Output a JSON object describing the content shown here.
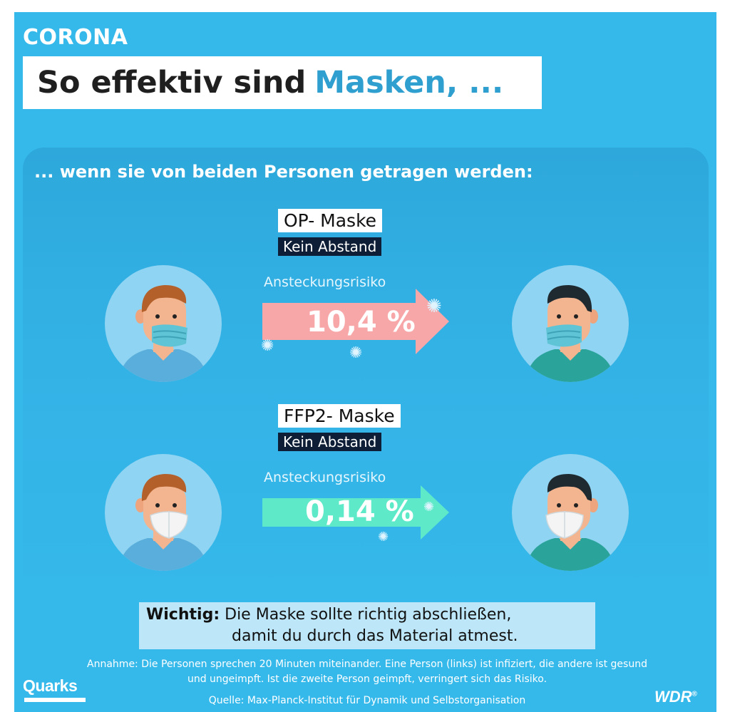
{
  "header": {
    "topic": "CORONA",
    "title_main": "So effektiv sind",
    "title_accent": "Masken, ..."
  },
  "subhead": "... wenn sie von beiden Personen getragen werden:",
  "scenarios": [
    {
      "mask": "OP- Maske",
      "distance": "Kein Abstand",
      "risk_label": "Ansteckungsrisiko",
      "risk_value": "10,4 %",
      "arrow_color": "#f8a7a8"
    },
    {
      "mask": "FFP2- Maske",
      "distance": "Kein Abstand",
      "risk_label": "Ansteckungsrisiko",
      "risk_value": "0,14 %",
      "arrow_color": "#5eeac8"
    }
  ],
  "note": {
    "bold": "Wichtig:",
    "line1": "Die Maske sollte richtig abschließen,",
    "line2": "damit du durch das Material atmest."
  },
  "assumption": "Annahme: Die Personen sprechen 20 Minuten miteinander. Eine Person (links) ist infiziert, die andere ist gesund und ungeimpft. Ist die zweite Person geimpft, verringert sich das Risiko.",
  "source": "Quelle: Max-Planck-Institut für Dynamik und Selbstorganisation",
  "logos": {
    "left": "Quarks",
    "right": "WDR",
    "right_mark": "®"
  },
  "colors": {
    "background": "#35b8ea",
    "accent": "#2f9fcf",
    "op_mask": "#5fc4d6",
    "ffp2_mask": "#f4f4f4",
    "left_shirt": "#5aaedb",
    "right_shirt": "#2aa39a"
  }
}
